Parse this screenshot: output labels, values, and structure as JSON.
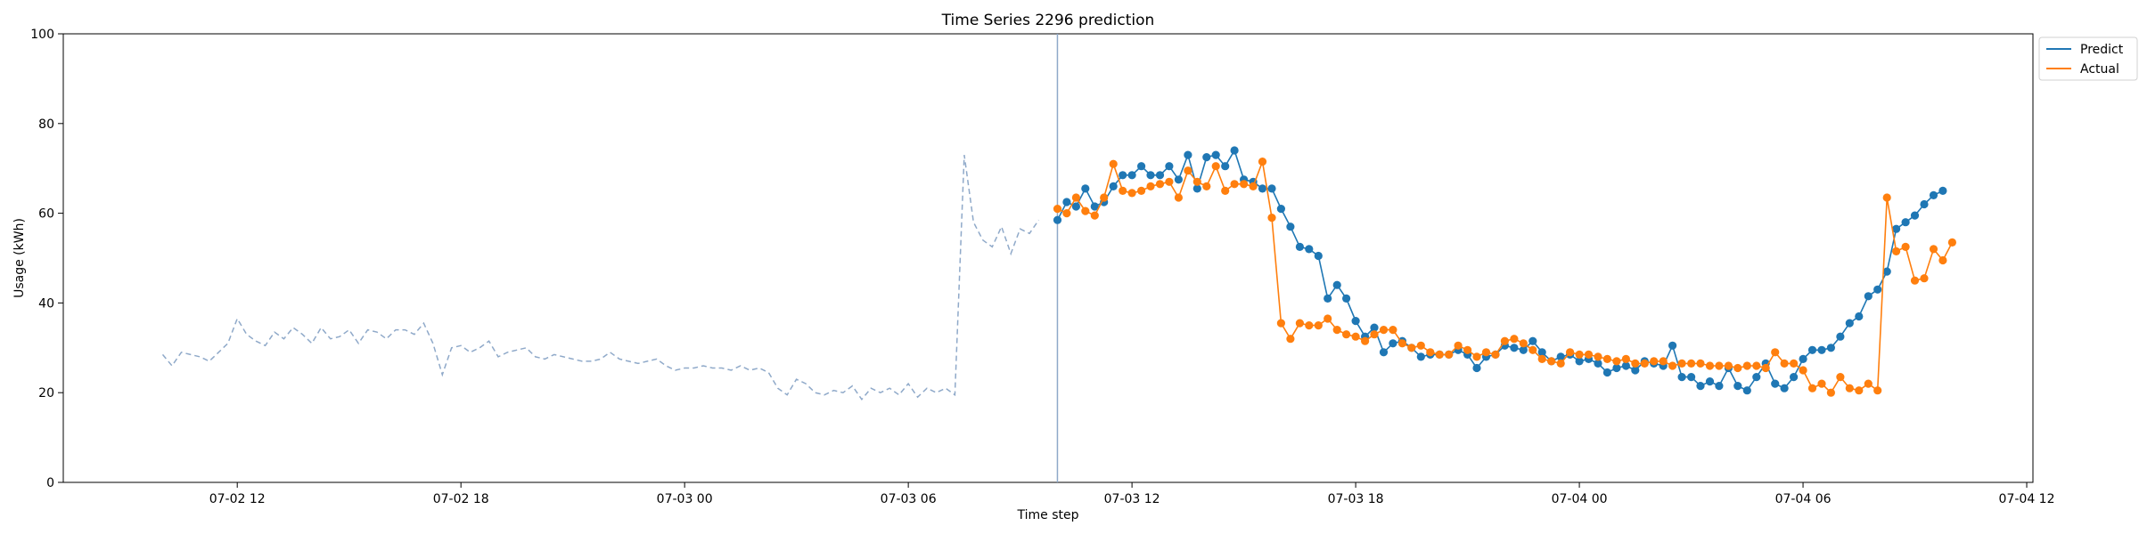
{
  "chart_data": {
    "type": "line",
    "title": "Time Series 2296 prediction",
    "xlabel": "Time step",
    "ylabel": "Usage (kWh)",
    "ylim": [
      0,
      100
    ],
    "xlim": [
      "2024-07-02 07:20",
      "2024-07-04 12:10"
    ],
    "y_ticks": [
      0,
      20,
      40,
      60,
      80,
      100
    ],
    "x_ticks": [
      "2024-07-02 12:00",
      "2024-07-02 18:00",
      "2024-07-03 00:00",
      "2024-07-03 06:00",
      "2024-07-03 12:00",
      "2024-07-03 18:00",
      "2024-07-04 00:00",
      "2024-07-04 06:00",
      "2024-07-04 12:00"
    ],
    "x_tick_labels": [
      "07-02 12",
      "07-02 18",
      "07-03 00",
      "07-03 06",
      "07-03 12",
      "07-03 18",
      "07-04 00",
      "07-04 06",
      "07-04 12"
    ],
    "grid": false,
    "legend_position": "outside top-right",
    "vertical_marker": "2024-07-03 10:00",
    "colors": {
      "predict": "#1f77b4",
      "actual": "#ff7f0e",
      "history": "#8fa9c9",
      "marker": "#8fa9c9"
    },
    "series": [
      {
        "role": "history",
        "style": "dashed",
        "start": "2024-07-02 10:00",
        "step_minutes": 15,
        "values": [
          28.5,
          26,
          29,
          28.5,
          28,
          27,
          29,
          31,
          36.5,
          33,
          31.5,
          30.5,
          33.5,
          32,
          34.5,
          33,
          31,
          34.5,
          32,
          32.5,
          34,
          31,
          34,
          33.5,
          32,
          34,
          34,
          33,
          35.5,
          31,
          24,
          30,
          30.5,
          29,
          30,
          31.5,
          28,
          29,
          29.5,
          30,
          28,
          27.5,
          28.5,
          28,
          27.5,
          27,
          27,
          27.5,
          29,
          27.5,
          27,
          26.5,
          27,
          27.5,
          26,
          25,
          25.5,
          25.5,
          26,
          25.5,
          25.5,
          25,
          26,
          25,
          25.5,
          24.5,
          21,
          19.5,
          23,
          22,
          20,
          19.5,
          20.5,
          20,
          21.5,
          18.5,
          21,
          20,
          21,
          19.5,
          22,
          19,
          21,
          20,
          21,
          19.5,
          73,
          58,
          54,
          52.5,
          57,
          51,
          56.5,
          55.5,
          58.5
        ]
      },
      {
        "name": "Predict",
        "role": "predict",
        "start": "2024-07-03 10:00",
        "step_minutes": 15,
        "values": [
          58.5,
          62.5,
          61.5,
          65.5,
          61.5,
          62.5,
          66,
          68.5,
          68.5,
          70.5,
          68.5,
          68.5,
          70.5,
          67.5,
          73,
          65.5,
          72.5,
          73,
          70.5,
          74,
          67.5,
          67,
          65.5,
          65.5,
          61,
          57,
          52.5,
          52,
          50.5,
          41,
          44,
          41,
          36,
          32.5,
          34.5,
          29,
          31,
          31.5,
          30,
          28,
          28.5,
          28.5,
          28.5,
          29.5,
          28.5,
          25.5,
          28,
          28.5,
          30.5,
          30,
          29.5,
          31.5,
          29,
          27,
          28,
          28.5,
          27,
          27.5,
          26.5,
          24.5,
          25.5,
          26,
          25,
          27,
          26.5,
          26,
          30.5,
          23.5,
          23.5,
          21.5,
          22.5,
          21.5,
          25.5,
          21.5,
          20.5,
          23.5,
          26.5,
          22,
          21,
          23.5,
          27.5,
          29.5,
          29.5,
          30,
          32.5,
          35.5,
          37,
          41.5,
          43,
          47,
          56.5,
          58,
          59.5,
          62,
          64,
          65
        ]
      },
      {
        "name": "Actual",
        "role": "actual",
        "start": "2024-07-03 10:00",
        "step_minutes": 15,
        "values": [
          61,
          60,
          63.5,
          60.5,
          59.5,
          63.5,
          71,
          65,
          64.5,
          65,
          66,
          66.5,
          67,
          63.5,
          69.5,
          67,
          66,
          70.5,
          65,
          66.5,
          66.5,
          66,
          71.5,
          59,
          35.5,
          32,
          35.5,
          35,
          35,
          36.5,
          34,
          33,
          32.5,
          31.5,
          33,
          34,
          34,
          31,
          30,
          30.5,
          29,
          28.5,
          28.5,
          30.5,
          29.5,
          28,
          29,
          28.5,
          31.5,
          32,
          31,
          29.5,
          27.5,
          27,
          26.5,
          29,
          28.5,
          28.5,
          28,
          27.5,
          27,
          27.5,
          26.5,
          26.5,
          27,
          27,
          26,
          26.5,
          26.5,
          26.5,
          26,
          26,
          26,
          25.5,
          26,
          26,
          25.5,
          29,
          26.5,
          26.5,
          25,
          21,
          22,
          20,
          23.5,
          21,
          20.5,
          22,
          20.5,
          63.5,
          51.5,
          52.5,
          45,
          45.5,
          52,
          49.5,
          53.5
        ]
      }
    ]
  }
}
